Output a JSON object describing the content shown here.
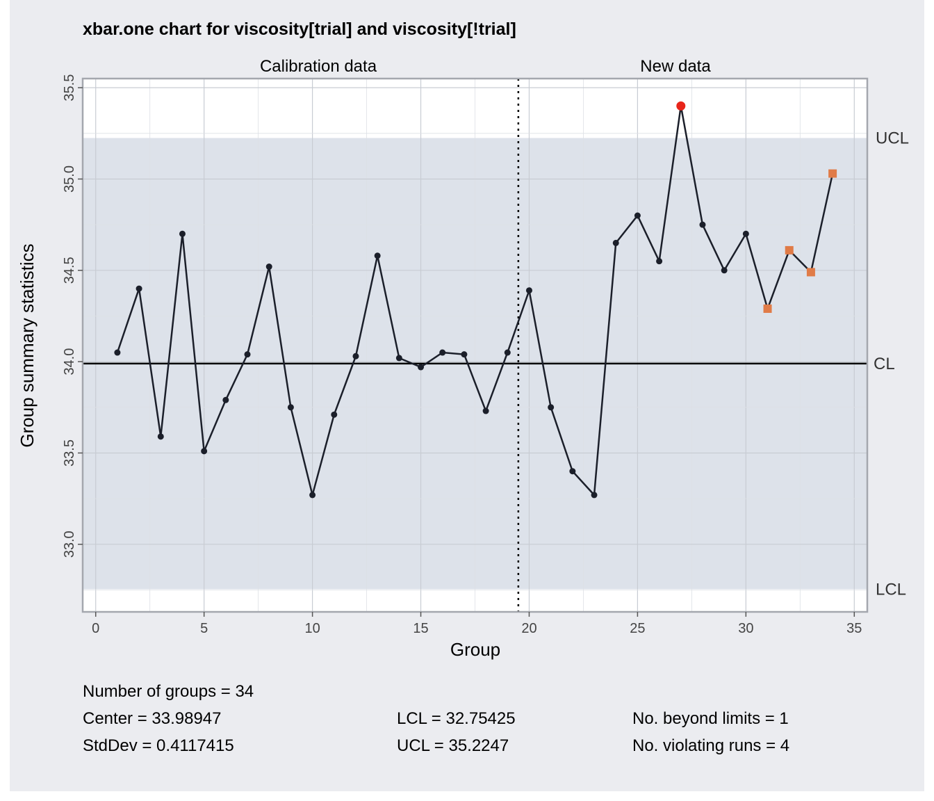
{
  "title": "xbar.one chart for viscosity[trial] and viscosity[!trial]",
  "facets": [
    "Calibration data",
    "New data"
  ],
  "xlabel": "Group",
  "ylabel": "Group summary statistics",
  "limit_labels": {
    "ucl": "UCL",
    "cl": "CL",
    "lcl": "LCL"
  },
  "stats": {
    "groups": "Number of groups = 34",
    "center": "Center = 33.98947",
    "stddev": "StdDev = 0.4117415",
    "lcl": "LCL = 32.75425",
    "ucl": "UCL = 35.2247",
    "beyond": "No. beyond limits = 1",
    "violating": "No. violating runs = 4"
  },
  "colors": {
    "background": "#ebecf0",
    "control_band": "#dde2ea",
    "line": "#1b1f2a",
    "out_of_limits": "#e8251a",
    "violating_run": "#e07b47",
    "center_line": "#000000"
  },
  "chart_data": {
    "type": "line",
    "title": "xbar.one chart for viscosity[trial] and viscosity[!trial]",
    "xlabel": "Group",
    "ylabel": "Group summary statistics",
    "xlim": [
      -0.6,
      35.6
    ],
    "ylim": [
      32.63,
      35.55
    ],
    "x_ticks": [
      0,
      5,
      10,
      15,
      20,
      25,
      30,
      35
    ],
    "y_ticks": [
      33.0,
      33.5,
      34.0,
      34.5,
      35.0,
      35.5
    ],
    "center": 33.98947,
    "lcl": 32.75425,
    "ucl": 35.2247,
    "calibration_groups": 19,
    "x": [
      1,
      2,
      3,
      4,
      5,
      6,
      7,
      8,
      9,
      10,
      11,
      12,
      13,
      14,
      15,
      16,
      17,
      18,
      19,
      20,
      21,
      22,
      23,
      24,
      25,
      26,
      27,
      28,
      29,
      30,
      31,
      32,
      33,
      34
    ],
    "values": [
      34.05,
      34.4,
      33.59,
      34.7,
      33.51,
      33.79,
      34.04,
      34.52,
      33.75,
      33.27,
      33.71,
      34.03,
      34.58,
      34.02,
      33.97,
      34.05,
      34.04,
      33.73,
      34.05,
      34.39,
      33.75,
      33.4,
      33.27,
      34.65,
      34.8,
      34.55,
      35.4,
      34.75,
      34.5,
      34.7,
      34.29,
      34.61,
      34.49,
      35.03
    ],
    "beyond_limits": [
      27
    ],
    "violating_runs": [
      31,
      32,
      33,
      34
    ],
    "grid": true
  }
}
